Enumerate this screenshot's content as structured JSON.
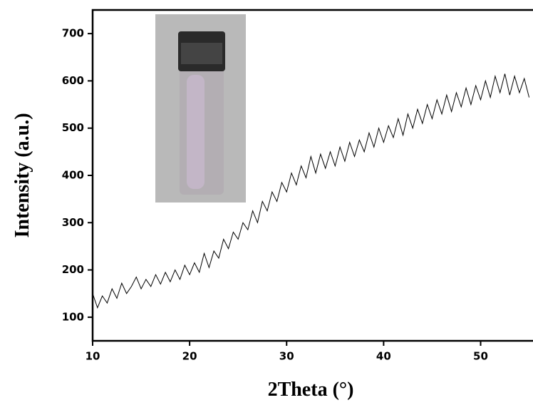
{
  "chart_data": {
    "type": "line",
    "x_label": "2Theta (°)",
    "y_label": "Intensity (a.u.)",
    "xlim": [
      10,
      55.4
    ],
    "ylim": [
      50,
      750
    ],
    "xticks": [
      10,
      20,
      30,
      40,
      50
    ],
    "yticks": [
      100,
      200,
      300,
      400,
      500,
      600,
      700
    ],
    "x": [
      10,
      10.5,
      11,
      11.5,
      12,
      12.5,
      13,
      13.5,
      14,
      14.5,
      15,
      15.5,
      16,
      16.5,
      17,
      17.5,
      18,
      18.5,
      19,
      19.5,
      20,
      20.5,
      21,
      21.5,
      22,
      22.5,
      23,
      23.5,
      24,
      24.5,
      25,
      25.5,
      26,
      26.5,
      27,
      27.5,
      28,
      28.5,
      29,
      29.5,
      30,
      30.5,
      31,
      31.5,
      32,
      32.5,
      33,
      33.5,
      34,
      34.5,
      35,
      35.5,
      36,
      36.5,
      37,
      37.5,
      38,
      38.5,
      39,
      39.5,
      40,
      40.5,
      41,
      41.5,
      42,
      42.5,
      43,
      43.5,
      44,
      44.5,
      45,
      45.5,
      46,
      46.5,
      47,
      47.5,
      48,
      48.5,
      49,
      49.5,
      50,
      50.5,
      51,
      51.5,
      52,
      52.5,
      53,
      53.5,
      54,
      54.5,
      55
    ],
    "series": [
      {
        "color": "#000000",
        "values": [
          150,
          120,
          145,
          130,
          160,
          140,
          172,
          150,
          165,
          185,
          160,
          180,
          165,
          190,
          170,
          195,
          175,
          200,
          180,
          210,
          190,
          215,
          195,
          235,
          205,
          240,
          225,
          265,
          245,
          280,
          265,
          300,
          285,
          325,
          300,
          345,
          325,
          365,
          345,
          385,
          365,
          405,
          380,
          420,
          395,
          440,
          405,
          445,
          415,
          450,
          420,
          460,
          430,
          470,
          440,
          475,
          450,
          490,
          460,
          500,
          470,
          505,
          480,
          520,
          485,
          530,
          500,
          540,
          510,
          550,
          520,
          560,
          530,
          570,
          535,
          575,
          545,
          585,
          550,
          590,
          560,
          600,
          565,
          610,
          575,
          615,
          570,
          610,
          575,
          605,
          565
        ]
      }
    ]
  }
}
